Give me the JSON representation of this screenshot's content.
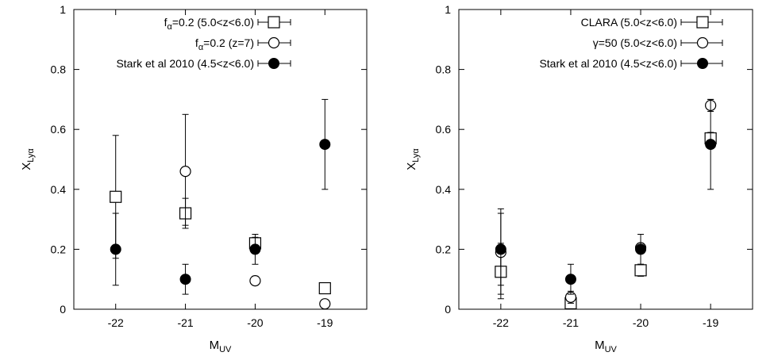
{
  "chart_data": [
    {
      "type": "scatter",
      "title": "",
      "xlabel": "M",
      "xlabel_sub": "UV",
      "ylabel": "X",
      "ylabel_sub": "Lyα",
      "xlim": [
        -22.6,
        -18.4
      ],
      "ylim": [
        0,
        1
      ],
      "xticks": [
        "-22",
        "-21",
        "-20",
        "-19"
      ],
      "xtick_values": [
        -22,
        -21,
        -20,
        -19
      ],
      "yticks": [
        "0",
        "0.2",
        "0.4",
        "0.6",
        "0.8",
        "1"
      ],
      "ytick_values": [
        0,
        0.2,
        0.4,
        0.6,
        0.8,
        1
      ],
      "grid": false,
      "legend_position": "top-right",
      "series": [
        {
          "name": "f",
          "name_sub": "α",
          "name_rest": "=0.2 (5.0<z<6.0)",
          "marker": "open-square",
          "points": [
            {
              "x": -22,
              "y": 0.375,
              "ylo": 0.17,
              "yhi": 0.58
            },
            {
              "x": -21,
              "y": 0.32,
              "ylo": 0.28,
              "yhi": 0.37
            },
            {
              "x": -20,
              "y": 0.22,
              "ylo": 0.2,
              "yhi": 0.24
            },
            {
              "x": -19,
              "y": 0.07,
              "ylo": 0.06,
              "yhi": 0.08
            }
          ]
        },
        {
          "name": "f",
          "name_sub": "α",
          "name_rest": "=0.2 (z=7)",
          "marker": "open-circle",
          "points": [
            {
              "x": -21,
              "y": 0.46,
              "ylo": 0.27,
              "yhi": 0.65
            },
            {
              "x": -20,
              "y": 0.095,
              "ylo": 0.08,
              "yhi": 0.11
            },
            {
              "x": -19,
              "y": 0.018,
              "ylo": 0.005,
              "yhi": 0.03
            }
          ]
        },
        {
          "name": "Stark et al 2010 (4.5<z<6.0)",
          "marker": "filled-circle",
          "points": [
            {
              "x": -22,
              "y": 0.2,
              "ylo": 0.08,
              "yhi": 0.32
            },
            {
              "x": -21,
              "y": 0.1,
              "ylo": 0.05,
              "yhi": 0.15
            },
            {
              "x": -20,
              "y": 0.2,
              "ylo": 0.15,
              "yhi": 0.25
            },
            {
              "x": -19,
              "y": 0.55,
              "ylo": 0.4,
              "yhi": 0.7
            }
          ]
        }
      ]
    },
    {
      "type": "scatter",
      "title": "",
      "xlabel": "M",
      "xlabel_sub": "UV",
      "ylabel": "X",
      "ylabel_sub": "Lyα",
      "xlim": [
        -22.6,
        -18.4
      ],
      "ylim": [
        0,
        1
      ],
      "xticks": [
        "-22",
        "-21",
        "-20",
        "-19"
      ],
      "xtick_values": [
        -22,
        -21,
        -20,
        -19
      ],
      "yticks": [
        "0",
        "0.2",
        "0.4",
        "0.6",
        "0.8",
        "1"
      ],
      "ytick_values": [
        0,
        0.2,
        0.4,
        0.6,
        0.8,
        1
      ],
      "grid": false,
      "legend_position": "top-right",
      "series": [
        {
          "name": "CLARA (5.0<z<6.0)",
          "marker": "open-square",
          "points": [
            {
              "x": -22,
              "y": 0.125,
              "ylo": 0.035,
              "yhi": 0.22
            },
            {
              "x": -21,
              "y": 0.02,
              "ylo": 0.005,
              "yhi": 0.04
            },
            {
              "x": -20,
              "y": 0.13,
              "ylo": 0.11,
              "yhi": 0.15
            },
            {
              "x": -19,
              "y": 0.57,
              "ylo": 0.55,
              "yhi": 0.59
            }
          ]
        },
        {
          "name": "γ=50 (5.0<z<6.0)",
          "marker": "open-circle",
          "points": [
            {
              "x": -22,
              "y": 0.19,
              "ylo": 0.05,
              "yhi": 0.335
            },
            {
              "x": -21,
              "y": 0.04,
              "ylo": 0.02,
              "yhi": 0.06
            },
            {
              "x": -20,
              "y": 0.205,
              "ylo": 0.19,
              "yhi": 0.22
            },
            {
              "x": -19,
              "y": 0.68,
              "ylo": 0.66,
              "yhi": 0.7
            }
          ]
        },
        {
          "name": "Stark et al 2010 (4.5<z<6.0)",
          "marker": "filled-circle",
          "points": [
            {
              "x": -22,
              "y": 0.2,
              "ylo": 0.08,
              "yhi": 0.32
            },
            {
              "x": -21,
              "y": 0.1,
              "ylo": 0.05,
              "yhi": 0.15
            },
            {
              "x": -20,
              "y": 0.2,
              "ylo": 0.15,
              "yhi": 0.25
            },
            {
              "x": -19,
              "y": 0.55,
              "ylo": 0.4,
              "yhi": 0.7
            }
          ]
        }
      ]
    }
  ]
}
